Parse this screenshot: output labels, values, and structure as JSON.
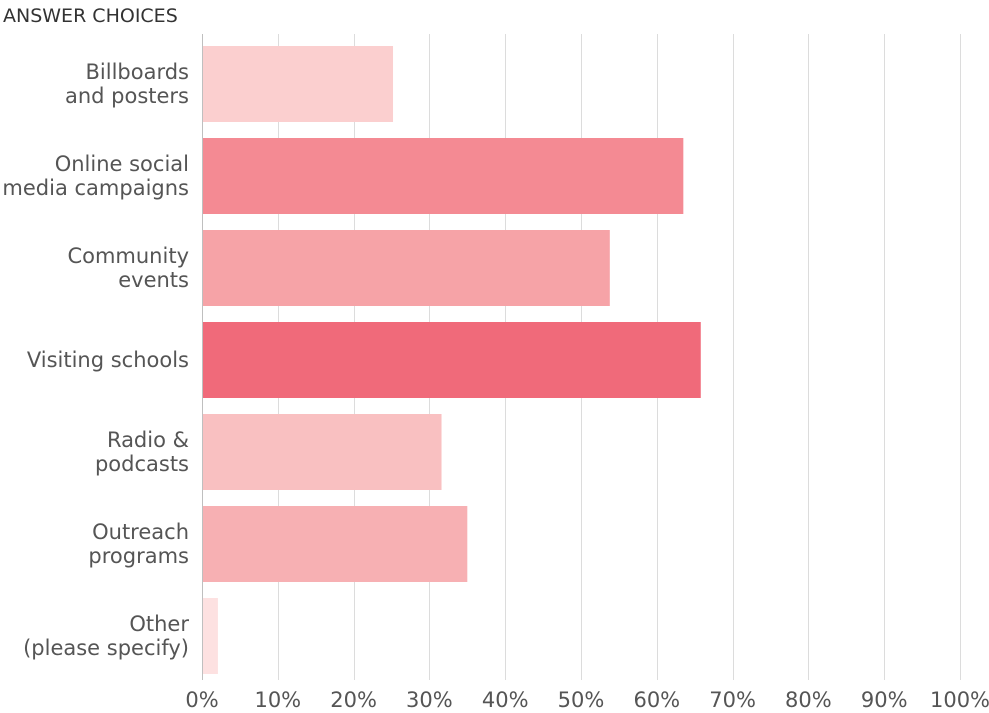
{
  "chart_data": {
    "type": "bar",
    "orientation": "horizontal",
    "header": "ANSWER CHOICES",
    "categories": [
      [
        "Billboards",
        "and posters"
      ],
      [
        "Online social",
        "media campaigns"
      ],
      [
        "Community",
        "events"
      ],
      [
        "Visiting schools"
      ],
      [
        "Radio &",
        "podcasts"
      ],
      [
        "Outreach",
        "programs"
      ],
      [
        "Other",
        "(please specify)"
      ]
    ],
    "values": [
      25.2,
      63.5,
      53.8,
      65.8,
      31.6,
      35.0,
      2.1
    ],
    "bar_colors": [
      "#FBCFCF",
      "#F48A93",
      "#F6A3A7",
      "#F06A7A",
      "#F9C0C1",
      "#F7B0B3",
      "#FDE1E1"
    ],
    "xlim": [
      0,
      100
    ],
    "xticks": [
      0,
      10,
      20,
      30,
      40,
      50,
      60,
      70,
      80,
      90,
      100
    ],
    "xtick_labels": [
      "0%",
      "10%",
      "20%",
      "30%",
      "40%",
      "50%",
      "60%",
      "70%",
      "80%",
      "90%",
      "100%"
    ],
    "grid": "vertical"
  }
}
